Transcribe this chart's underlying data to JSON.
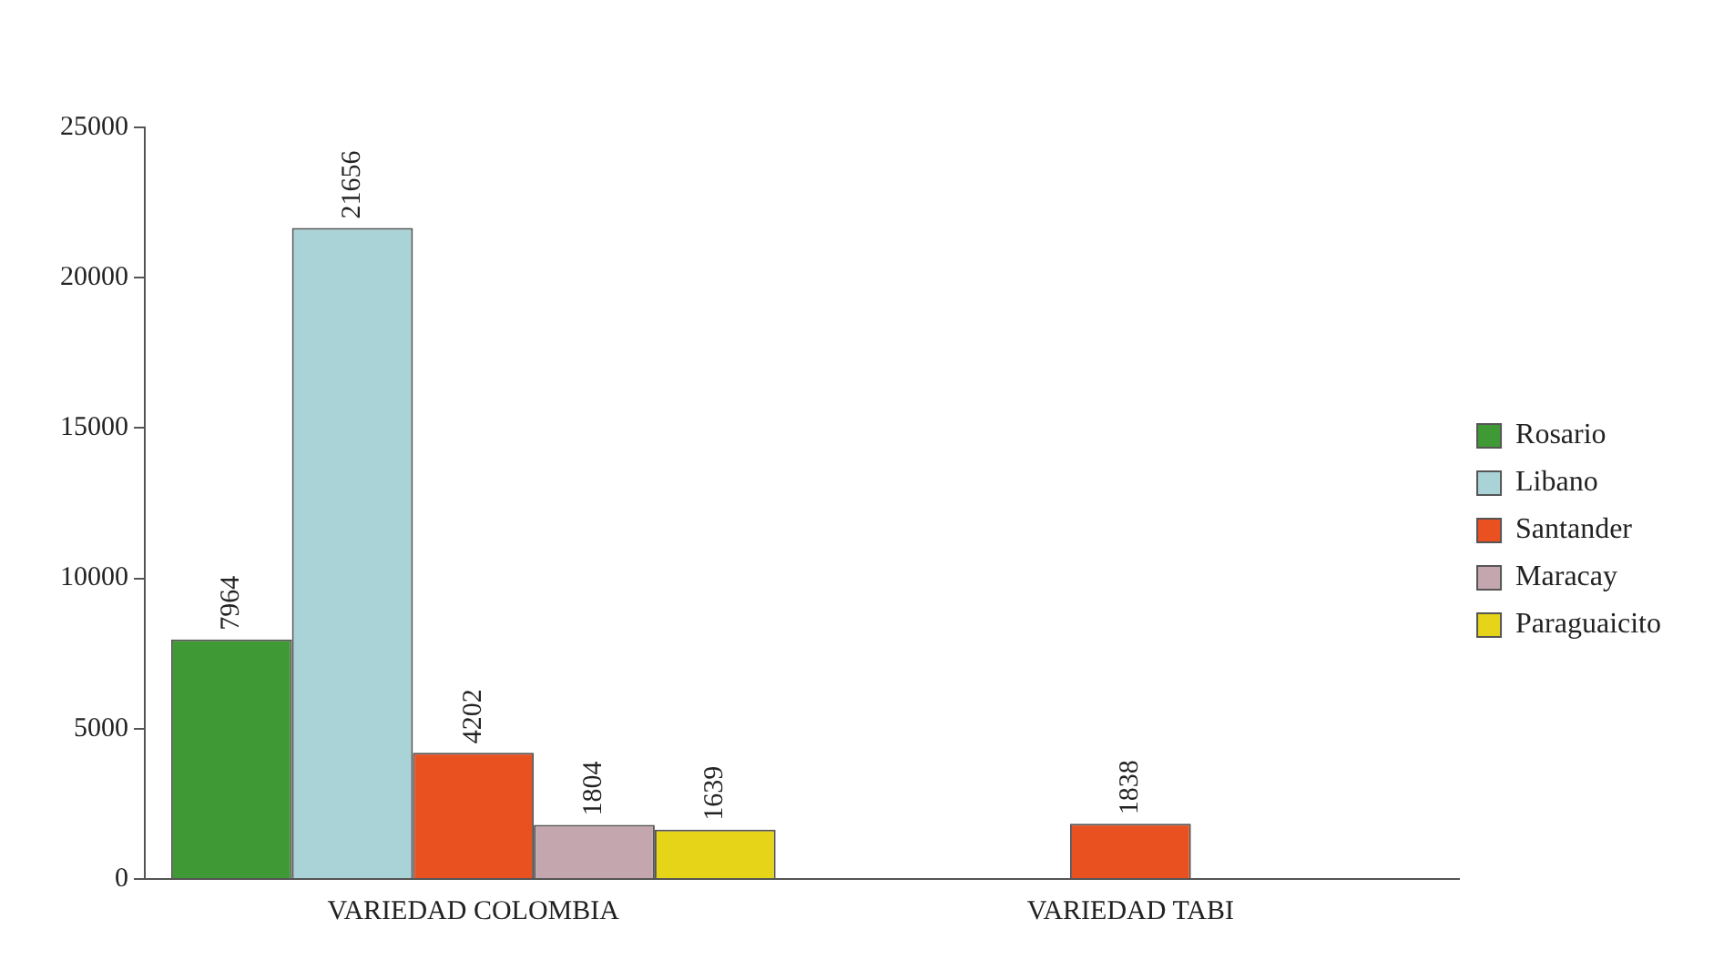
{
  "chart_data": {
    "type": "bar",
    "categories": [
      "VARIEDAD COLOMBIA",
      "VARIEDAD TABI"
    ],
    "series": [
      {
        "name": "Rosario",
        "color": "#3f9a35",
        "values": [
          7964,
          null
        ]
      },
      {
        "name": "Libano",
        "color": "#a9d3d6",
        "values": [
          21656,
          null
        ]
      },
      {
        "name": "Santander",
        "color": "#ea5120",
        "values": [
          4202,
          1838
        ]
      },
      {
        "name": "Maracay",
        "color": "#c4a6ae",
        "values": [
          1804,
          null
        ]
      },
      {
        "name": "Paraguaicito",
        "color": "#e6d419",
        "values": [
          1639,
          null
        ]
      }
    ],
    "ylim": [
      0,
      25000
    ],
    "yticks": [
      0,
      5000,
      10000,
      15000,
      20000,
      25000
    ],
    "grid": false,
    "legend": "right",
    "data_labels": true
  }
}
